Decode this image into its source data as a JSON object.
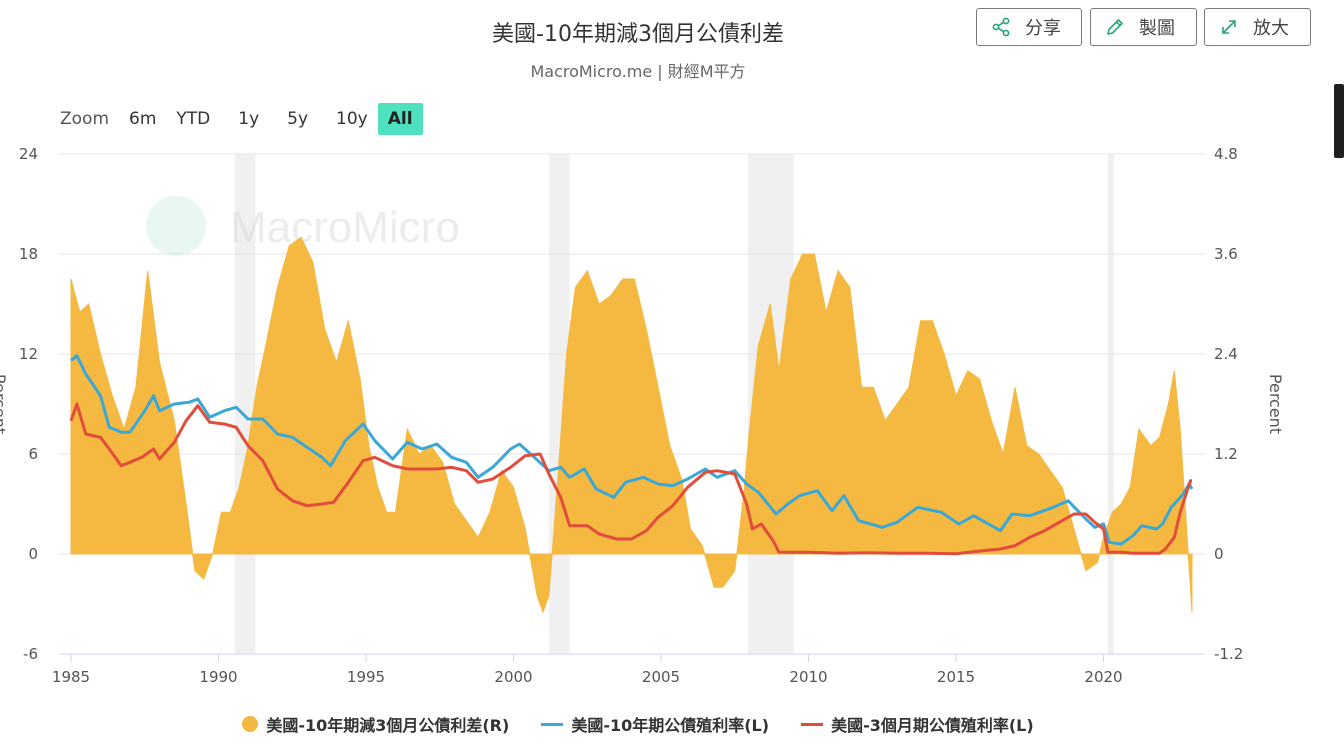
{
  "title": "美國-10年期減3個月公債利差",
  "subtitle": "MacroMicro.me | 財經M平方",
  "watermark": "MacroMicro",
  "toolbar": {
    "share": {
      "label": "分享",
      "icon": "share-icon"
    },
    "chart": {
      "label": "製圖",
      "icon": "pencil-icon"
    },
    "expand": {
      "label": "放大",
      "icon": "expand-icon"
    }
  },
  "zoom": {
    "label": "Zoom",
    "options": [
      "6m",
      "YTD",
      "1y",
      "5y",
      "10y",
      "All"
    ],
    "active": "All"
  },
  "colors": {
    "spread": "#f5b942",
    "ten_year": "#3aa8d6",
    "three_month": "#e24c3a",
    "recession": "#f0f0f0",
    "zoom_active": "#4fe0c0"
  },
  "chart_data": {
    "type": "area",
    "title": "美國-10年期減3個月公債利差",
    "subtitle": "MacroMicro.me | 財經M平方",
    "x_range": [
      1985,
      2023
    ],
    "x_ticks": [
      "1985",
      "1990",
      "1995",
      "2000",
      "2005",
      "2010",
      "2015",
      "2020"
    ],
    "x_tick_values": [
      1985,
      1990,
      1995,
      2000,
      2005,
      2010,
      2015,
      2020
    ],
    "y_left": {
      "label": "Percent",
      "range": [
        -6,
        24
      ],
      "ticks": [
        "24",
        "18",
        "12",
        "6",
        "0",
        "-6"
      ],
      "tick_values": [
        24,
        18,
        12,
        6,
        0,
        -6
      ]
    },
    "y_right": {
      "label": "Percent",
      "range": [
        -1.2,
        4.8
      ],
      "ticks": [
        "4.8",
        "3.6",
        "2.4",
        "1.2",
        "0",
        "-1.2"
      ],
      "tick_values": [
        4.8,
        3.6,
        2.4,
        1.2,
        0,
        -1.2
      ]
    },
    "grid": true,
    "legend_position": "bottom",
    "recessions": [
      [
        1990.55,
        1991.25
      ],
      [
        2001.2,
        2001.9
      ],
      [
        2007.95,
        2009.5
      ],
      [
        2020.15,
        2020.35
      ]
    ],
    "series": [
      {
        "name": "美國-10年期減3個月公債利差(R)",
        "axis": "right",
        "type": "area",
        "points": [
          [
            1985.0,
            3.3
          ],
          [
            1985.3,
            2.9
          ],
          [
            1985.6,
            3.0
          ],
          [
            1986.0,
            2.4
          ],
          [
            1986.4,
            1.9
          ],
          [
            1986.8,
            1.5
          ],
          [
            1987.2,
            2.0
          ],
          [
            1987.6,
            3.4
          ],
          [
            1988.0,
            2.3
          ],
          [
            1988.5,
            1.6
          ],
          [
            1988.9,
            0.6
          ],
          [
            1989.2,
            -0.2
          ],
          [
            1989.5,
            -0.3
          ],
          [
            1989.8,
            0.0
          ],
          [
            1990.1,
            0.5
          ],
          [
            1990.4,
            0.5
          ],
          [
            1990.7,
            0.8
          ],
          [
            1991.0,
            1.3
          ],
          [
            1991.3,
            2.0
          ],
          [
            1991.6,
            2.5
          ],
          [
            1992.0,
            3.2
          ],
          [
            1992.4,
            3.7
          ],
          [
            1992.8,
            3.8
          ],
          [
            1993.2,
            3.5
          ],
          [
            1993.6,
            2.7
          ],
          [
            1994.0,
            2.3
          ],
          [
            1994.4,
            2.8
          ],
          [
            1994.8,
            2.1
          ],
          [
            1995.1,
            1.3
          ],
          [
            1995.4,
            0.8
          ],
          [
            1995.7,
            0.5
          ],
          [
            1996.0,
            0.5
          ],
          [
            1996.4,
            1.5
          ],
          [
            1996.8,
            1.2
          ],
          [
            1997.2,
            1.3
          ],
          [
            1997.6,
            1.1
          ],
          [
            1998.0,
            0.6
          ],
          [
            1998.4,
            0.4
          ],
          [
            1998.8,
            0.2
          ],
          [
            1999.2,
            0.5
          ],
          [
            1999.6,
            1.0
          ],
          [
            2000.0,
            0.8
          ],
          [
            2000.4,
            0.3
          ],
          [
            2000.8,
            -0.5
          ],
          [
            2001.0,
            -0.7
          ],
          [
            2001.2,
            -0.5
          ],
          [
            2001.5,
            0.9
          ],
          [
            2001.8,
            2.4
          ],
          [
            2002.1,
            3.2
          ],
          [
            2002.5,
            3.4
          ],
          [
            2002.9,
            3.0
          ],
          [
            2003.3,
            3.1
          ],
          [
            2003.7,
            3.3
          ],
          [
            2004.1,
            3.3
          ],
          [
            2004.5,
            2.7
          ],
          [
            2004.9,
            2.0
          ],
          [
            2005.3,
            1.3
          ],
          [
            2005.7,
            0.9
          ],
          [
            2006.0,
            0.3
          ],
          [
            2006.4,
            0.1
          ],
          [
            2006.8,
            -0.4
          ],
          [
            2007.1,
            -0.4
          ],
          [
            2007.5,
            -0.2
          ],
          [
            2007.8,
            0.7
          ],
          [
            2008.0,
            1.5
          ],
          [
            2008.3,
            2.5
          ],
          [
            2008.7,
            3.0
          ],
          [
            2009.0,
            2.2
          ],
          [
            2009.4,
            3.3
          ],
          [
            2009.8,
            3.6
          ],
          [
            2010.2,
            3.6
          ],
          [
            2010.6,
            2.9
          ],
          [
            2011.0,
            3.4
          ],
          [
            2011.4,
            3.2
          ],
          [
            2011.8,
            2.0
          ],
          [
            2012.2,
            2.0
          ],
          [
            2012.6,
            1.6
          ],
          [
            2013.0,
            1.8
          ],
          [
            2013.4,
            2.0
          ],
          [
            2013.8,
            2.8
          ],
          [
            2014.2,
            2.8
          ],
          [
            2014.6,
            2.4
          ],
          [
            2015.0,
            1.9
          ],
          [
            2015.4,
            2.2
          ],
          [
            2015.8,
            2.1
          ],
          [
            2016.2,
            1.6
          ],
          [
            2016.6,
            1.2
          ],
          [
            2017.0,
            2.0
          ],
          [
            2017.4,
            1.3
          ],
          [
            2017.8,
            1.2
          ],
          [
            2018.2,
            1.0
          ],
          [
            2018.6,
            0.8
          ],
          [
            2019.0,
            0.3
          ],
          [
            2019.4,
            -0.2
          ],
          [
            2019.8,
            -0.1
          ],
          [
            2020.0,
            0.2
          ],
          [
            2020.3,
            0.5
          ],
          [
            2020.6,
            0.6
          ],
          [
            2020.9,
            0.8
          ],
          [
            2021.2,
            1.5
          ],
          [
            2021.6,
            1.3
          ],
          [
            2021.9,
            1.4
          ],
          [
            2022.2,
            1.8
          ],
          [
            2022.4,
            2.2
          ],
          [
            2022.6,
            1.5
          ],
          [
            2022.8,
            0.4
          ],
          [
            2023.0,
            -0.7
          ]
        ]
      },
      {
        "name": "美國-10年期公債殖利率(L)",
        "axis": "left",
        "type": "line",
        "points": [
          [
            1985.0,
            11.6
          ],
          [
            1985.2,
            11.9
          ],
          [
            1985.5,
            10.8
          ],
          [
            1986.0,
            9.5
          ],
          [
            1986.3,
            7.6
          ],
          [
            1986.7,
            7.3
          ],
          [
            1987.0,
            7.3
          ],
          [
            1987.5,
            8.6
          ],
          [
            1987.8,
            9.5
          ],
          [
            1988.0,
            8.6
          ],
          [
            1988.5,
            9.0
          ],
          [
            1989.0,
            9.1
          ],
          [
            1989.3,
            9.3
          ],
          [
            1989.7,
            8.2
          ],
          [
            1990.2,
            8.6
          ],
          [
            1990.6,
            8.8
          ],
          [
            1991.0,
            8.1
          ],
          [
            1991.5,
            8.1
          ],
          [
            1992.0,
            7.2
          ],
          [
            1992.5,
            7.0
          ],
          [
            1993.0,
            6.4
          ],
          [
            1993.5,
            5.8
          ],
          [
            1993.8,
            5.3
          ],
          [
            1994.3,
            6.8
          ],
          [
            1994.9,
            7.8
          ],
          [
            1995.3,
            6.8
          ],
          [
            1995.9,
            5.7
          ],
          [
            1996.4,
            6.7
          ],
          [
            1996.9,
            6.3
          ],
          [
            1997.4,
            6.6
          ],
          [
            1997.9,
            5.8
          ],
          [
            1998.4,
            5.5
          ],
          [
            1998.8,
            4.6
          ],
          [
            1999.3,
            5.2
          ],
          [
            1999.9,
            6.3
          ],
          [
            2000.2,
            6.6
          ],
          [
            2000.7,
            5.8
          ],
          [
            2001.2,
            5.0
          ],
          [
            2001.6,
            5.2
          ],
          [
            2001.9,
            4.6
          ],
          [
            2002.4,
            5.1
          ],
          [
            2002.8,
            3.9
          ],
          [
            2003.4,
            3.4
          ],
          [
            2003.8,
            4.3
          ],
          [
            2004.4,
            4.6
          ],
          [
            2004.9,
            4.2
          ],
          [
            2005.4,
            4.1
          ],
          [
            2005.9,
            4.5
          ],
          [
            2006.5,
            5.1
          ],
          [
            2006.9,
            4.6
          ],
          [
            2007.5,
            5.0
          ],
          [
            2007.9,
            4.2
          ],
          [
            2008.3,
            3.7
          ],
          [
            2008.9,
            2.4
          ],
          [
            2009.3,
            3.0
          ],
          [
            2009.7,
            3.5
          ],
          [
            2010.3,
            3.8
          ],
          [
            2010.8,
            2.6
          ],
          [
            2011.2,
            3.5
          ],
          [
            2011.7,
            2.0
          ],
          [
            2012.5,
            1.6
          ],
          [
            2013.0,
            1.9
          ],
          [
            2013.7,
            2.8
          ],
          [
            2014.5,
            2.5
          ],
          [
            2015.1,
            1.8
          ],
          [
            2015.6,
            2.3
          ],
          [
            2016.5,
            1.4
          ],
          [
            2016.9,
            2.4
          ],
          [
            2017.5,
            2.3
          ],
          [
            2018.3,
            2.8
          ],
          [
            2018.8,
            3.2
          ],
          [
            2019.4,
            2.1
          ],
          [
            2019.7,
            1.6
          ],
          [
            2020.0,
            1.8
          ],
          [
            2020.2,
            0.7
          ],
          [
            2020.6,
            0.6
          ],
          [
            2021.0,
            1.1
          ],
          [
            2021.3,
            1.7
          ],
          [
            2021.8,
            1.5
          ],
          [
            2022.0,
            1.8
          ],
          [
            2022.3,
            2.8
          ],
          [
            2022.5,
            3.2
          ],
          [
            2022.7,
            3.6
          ],
          [
            2022.9,
            4.2
          ],
          [
            2023.0,
            3.9
          ]
        ]
      },
      {
        "name": "美國-3個月期公債殖利率(L)",
        "axis": "left",
        "type": "line",
        "points": [
          [
            1985.0,
            8.0
          ],
          [
            1985.2,
            9.0
          ],
          [
            1985.5,
            7.2
          ],
          [
            1986.0,
            7.0
          ],
          [
            1986.3,
            6.3
          ],
          [
            1986.7,
            5.3
          ],
          [
            1987.0,
            5.5
          ],
          [
            1987.4,
            5.8
          ],
          [
            1987.8,
            6.3
          ],
          [
            1988.0,
            5.7
          ],
          [
            1988.5,
            6.7
          ],
          [
            1988.9,
            8.0
          ],
          [
            1989.3,
            8.9
          ],
          [
            1989.7,
            7.9
          ],
          [
            1990.2,
            7.8
          ],
          [
            1990.6,
            7.6
          ],
          [
            1991.0,
            6.5
          ],
          [
            1991.5,
            5.6
          ],
          [
            1992.0,
            3.9
          ],
          [
            1992.5,
            3.2
          ],
          [
            1993.0,
            2.9
          ],
          [
            1993.5,
            3.0
          ],
          [
            1993.9,
            3.1
          ],
          [
            1994.4,
            4.3
          ],
          [
            1994.9,
            5.6
          ],
          [
            1995.3,
            5.8
          ],
          [
            1995.9,
            5.3
          ],
          [
            1996.4,
            5.1
          ],
          [
            1996.9,
            5.1
          ],
          [
            1997.4,
            5.1
          ],
          [
            1997.9,
            5.2
          ],
          [
            1998.4,
            5.0
          ],
          [
            1998.8,
            4.3
          ],
          [
            1999.3,
            4.5
          ],
          [
            1999.9,
            5.2
          ],
          [
            2000.4,
            5.9
          ],
          [
            2000.9,
            6.0
          ],
          [
            2001.2,
            4.8
          ],
          [
            2001.6,
            3.4
          ],
          [
            2001.9,
            1.7
          ],
          [
            2002.5,
            1.7
          ],
          [
            2002.9,
            1.2
          ],
          [
            2003.5,
            0.9
          ],
          [
            2004.0,
            0.9
          ],
          [
            2004.5,
            1.4
          ],
          [
            2004.9,
            2.2
          ],
          [
            2005.4,
            2.9
          ],
          [
            2005.9,
            4.0
          ],
          [
            2006.5,
            4.9
          ],
          [
            2006.9,
            5.0
          ],
          [
            2007.5,
            4.8
          ],
          [
            2007.7,
            3.9
          ],
          [
            2007.9,
            3.0
          ],
          [
            2008.1,
            1.5
          ],
          [
            2008.4,
            1.8
          ],
          [
            2008.8,
            0.8
          ],
          [
            2009.0,
            0.1
          ],
          [
            2010.0,
            0.1
          ],
          [
            2011.0,
            0.05
          ],
          [
            2012.0,
            0.08
          ],
          [
            2013.0,
            0.05
          ],
          [
            2014.0,
            0.04
          ],
          [
            2015.0,
            0.02
          ],
          [
            2015.9,
            0.2
          ],
          [
            2016.5,
            0.3
          ],
          [
            2017.0,
            0.5
          ],
          [
            2017.5,
            1.0
          ],
          [
            2018.0,
            1.4
          ],
          [
            2018.5,
            1.9
          ],
          [
            2019.0,
            2.4
          ],
          [
            2019.4,
            2.4
          ],
          [
            2019.7,
            1.9
          ],
          [
            2020.0,
            1.5
          ],
          [
            2020.15,
            0.1
          ],
          [
            2020.6,
            0.1
          ],
          [
            2021.0,
            0.05
          ],
          [
            2021.5,
            0.05
          ],
          [
            2021.9,
            0.05
          ],
          [
            2022.1,
            0.3
          ],
          [
            2022.4,
            1.0
          ],
          [
            2022.6,
            2.5
          ],
          [
            2022.8,
            3.6
          ],
          [
            2022.95,
            4.4
          ],
          [
            2023.0,
            4.4
          ]
        ]
      }
    ]
  }
}
